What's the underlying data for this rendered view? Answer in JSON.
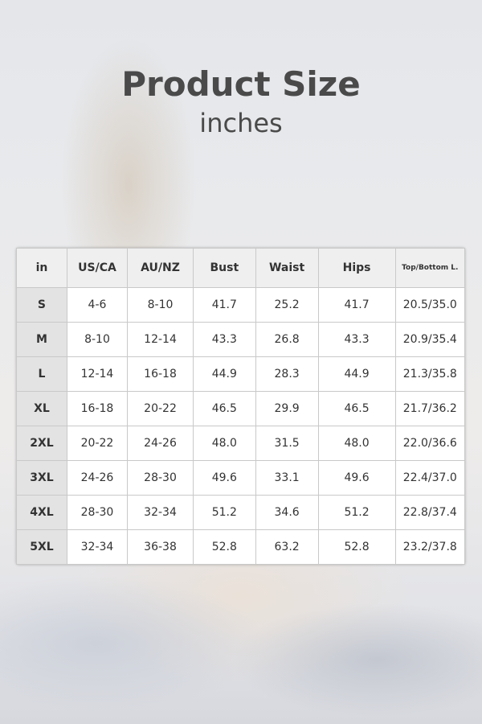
{
  "title": "Product Size",
  "subtitle": "inches",
  "table": {
    "headers": [
      "in",
      "US/CA",
      "AU/NZ",
      "Bust",
      "Waist",
      "Hips",
      "Top/Bottom L."
    ],
    "rows": [
      [
        "S",
        "4-6",
        "8-10",
        "41.7",
        "25.2",
        "41.7",
        "20.5/35.0"
      ],
      [
        "M",
        "8-10",
        "12-14",
        "43.3",
        "26.8",
        "43.3",
        "20.9/35.4"
      ],
      [
        "L",
        "12-14",
        "16-18",
        "44.9",
        "28.3",
        "44.9",
        "21.3/35.8"
      ],
      [
        "XL",
        "16-18",
        "20-22",
        "46.5",
        "29.9",
        "46.5",
        "21.7/36.2"
      ],
      [
        "2XL",
        "20-22",
        "24-26",
        "48.0",
        "31.5",
        "48.0",
        "22.0/36.6"
      ],
      [
        "3XL",
        "24-26",
        "28-30",
        "49.6",
        "33.1",
        "49.6",
        "22.4/37.0"
      ],
      [
        "4XL",
        "28-30",
        "32-34",
        "51.2",
        "34.6",
        "51.2",
        "22.8/37.4"
      ],
      [
        "5XL",
        "32-34",
        "36-38",
        "52.8",
        "63.2",
        "52.8",
        "23.2/37.8"
      ]
    ]
  }
}
